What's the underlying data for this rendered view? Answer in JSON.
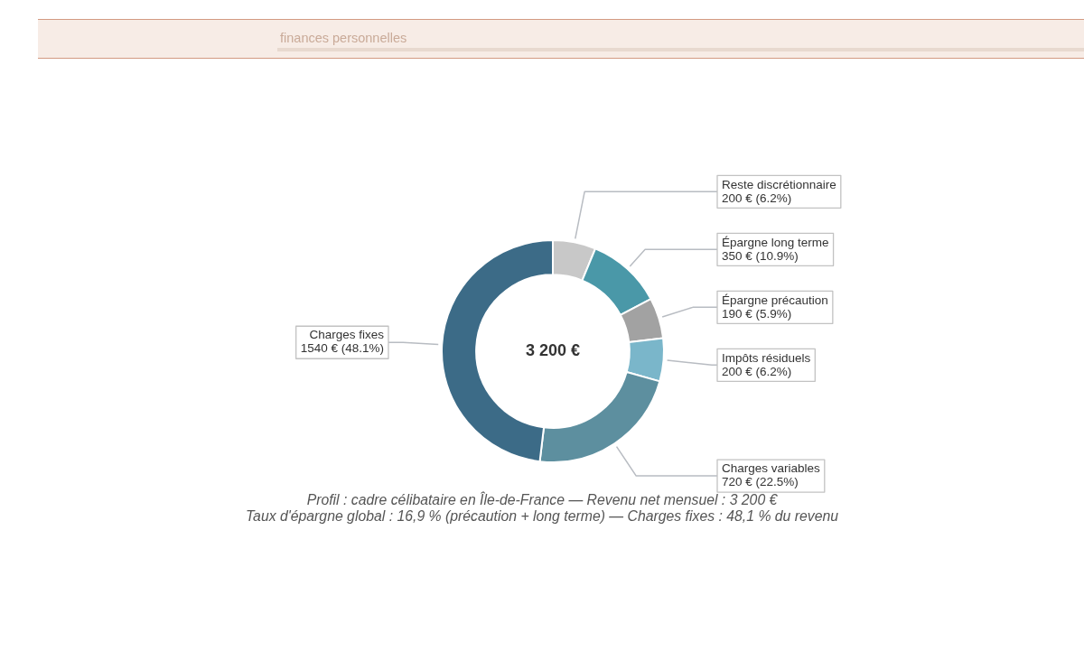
{
  "chart_data": {
    "type": "donut",
    "subtitle": "finances personnelles",
    "categories": [
      "Reste discrétionnaire",
      "Épargne long terme",
      "Épargne précaution",
      "Impôts résiduels",
      "Charges variables",
      "Charges fixes"
    ],
    "values": [
      200,
      350,
      190,
      200,
      720,
      1540
    ],
    "colors": [
      "#c8c8c8",
      "#4a98a8",
      "#a2a2a2",
      "#7ab6ca",
      "#5d8f9f",
      "#3c6b87"
    ],
    "value_labels": [
      "200 € (6.2%)",
      "350 € (10.9%)",
      "190 € (5.9%)",
      "200 € (6.2%)",
      "720 € (22.5%)",
      "1540 € (48.1%)"
    ],
    "legend": false,
    "annotations": [
      "3 200 €",
      "Profil : cadre célibataire en Île-de-France — Revenu net mensuel : 3 200 €",
      "Taux d'épargne global : 16,9 % (précaution + long terme) — Charges fixes : 48,1 % du revenu"
    ]
  }
}
